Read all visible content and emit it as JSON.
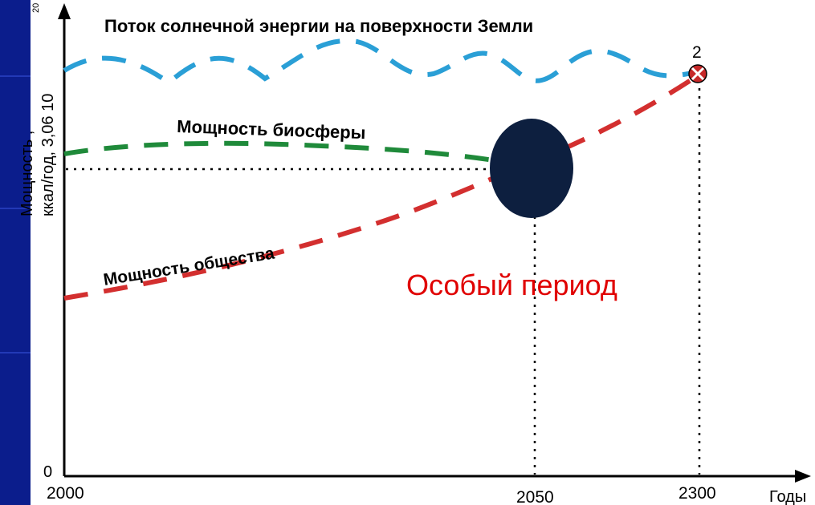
{
  "colors": {
    "background": "#0b1d8c",
    "panel": "#ffffff",
    "solar": "#2a9fd6",
    "biosphere": "#1f8a3a",
    "society": "#d32f2f",
    "marker": "#c62828",
    "blob": "#0d1f3f",
    "special_text": "#e00000",
    "axis": "#000000"
  },
  "chart_data": {
    "type": "line",
    "title": "Поток солнечной энергии на поверхности Земли",
    "ylabel_line1": "Мощность ,",
    "ylabel_line2": "ккал/год, 3,06 10",
    "ylabel_sup": "20",
    "xlabel": "Годы",
    "y_zero_label": "0",
    "x_ticks": [
      "2000",
      "2050",
      "2300"
    ],
    "point_label": "2",
    "annotation": "Особый период",
    "series": [
      {
        "name": "Мощность биосферы",
        "trend": "flat",
        "level": 0.62
      },
      {
        "name": "Мощность общества",
        "trend": "rising"
      },
      {
        "name": "",
        "trend": "oscillating",
        "level": 0.92
      }
    ],
    "grid": false,
    "legend": "none"
  }
}
